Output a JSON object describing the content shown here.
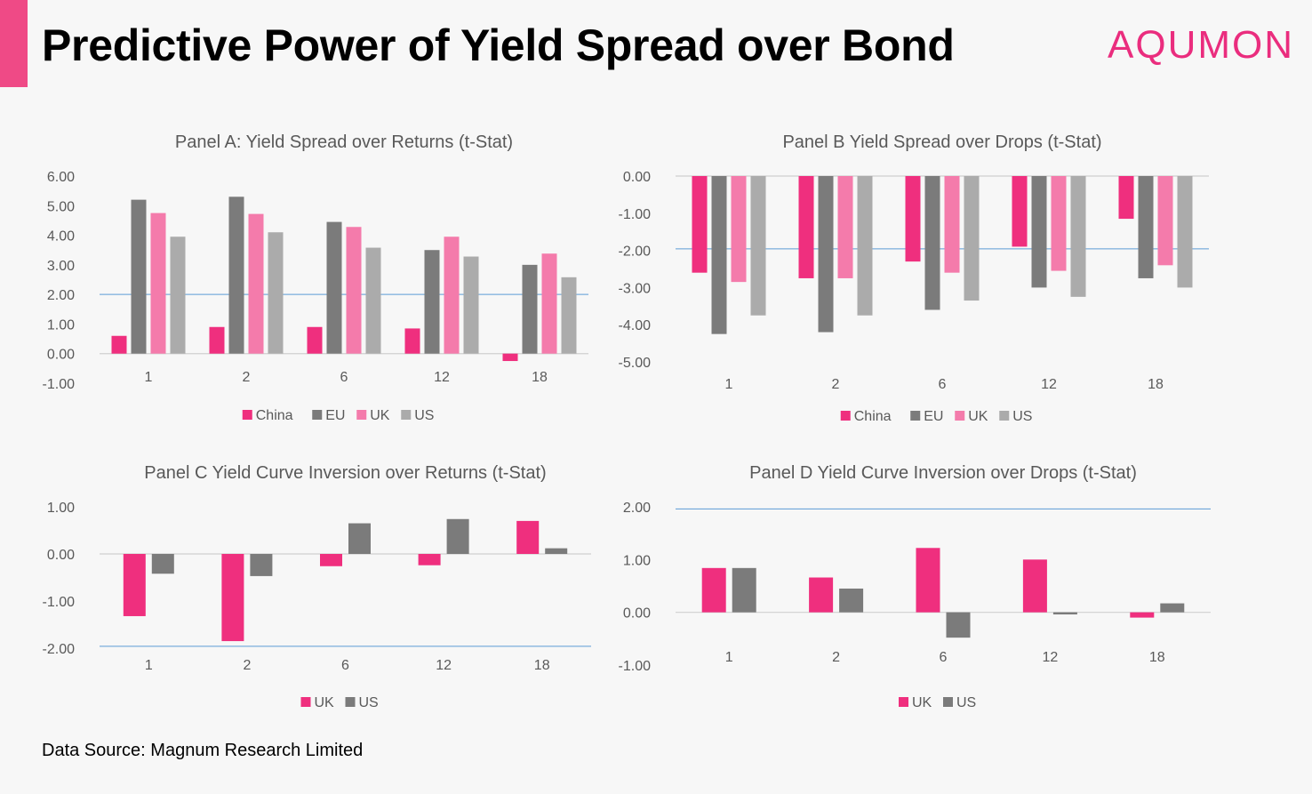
{
  "header": {
    "title": "Predictive Power of Yield Spread over Bond",
    "logo_text": "AQUMON"
  },
  "footer": {
    "source": "Data Source: Magnum Research Limited"
  },
  "colors": {
    "accent": "#ef4a86",
    "logo": "#ea2d7e",
    "China": "#ef2f7e",
    "EU": "#7b7b7b",
    "UK_A": "#f47bab",
    "US_A": "#ababab",
    "UK_C": "#ef2f7e",
    "US_C": "#7b7b7b",
    "threshold_line": "#5b9bd5"
  },
  "chart_data": [
    {
      "id": "panel-a",
      "type": "bar",
      "title": "Panel A: Yield Spread over Returns (t-Stat)",
      "categories": [
        "1",
        "2",
        "6",
        "12",
        "18"
      ],
      "yticks": [
        "6.00",
        "5.00",
        "4.00",
        "3.00",
        "2.00",
        "1.00",
        "0.00",
        "-1.00"
      ],
      "ylim": [
        -1,
        6
      ],
      "reference_line": 2,
      "legend_position": "bottom",
      "series": [
        {
          "name": "China",
          "color": "#ef2f7e",
          "values": [
            0.6,
            0.9,
            0.9,
            0.85,
            -0.25
          ]
        },
        {
          "name": "EU",
          "color": "#7b7b7b",
          "values": [
            5.2,
            5.3,
            4.45,
            3.5,
            3.0
          ]
        },
        {
          "name": "UK",
          "color": "#f47bab",
          "values": [
            4.75,
            4.72,
            4.28,
            3.95,
            3.38
          ]
        },
        {
          "name": "US",
          "color": "#ababab",
          "values": [
            3.95,
            4.1,
            3.58,
            3.28,
            2.58
          ]
        }
      ]
    },
    {
      "id": "panel-b",
      "type": "bar",
      "title": "Panel B Yield Spread over Drops (t-Stat)",
      "categories": [
        "1",
        "2",
        "6",
        "12",
        "18"
      ],
      "yticks": [
        "0.00",
        "-1.00",
        "-2.00",
        "-3.00",
        "-4.00",
        "-5.00"
      ],
      "ylim": [
        -5,
        0
      ],
      "reference_line": -1.96,
      "legend_position": "bottom",
      "series": [
        {
          "name": "China",
          "color": "#ef2f7e",
          "values": [
            -2.6,
            -2.75,
            -2.3,
            -1.9,
            -1.15
          ]
        },
        {
          "name": "EU",
          "color": "#7b7b7b",
          "values": [
            -4.25,
            -4.2,
            -3.6,
            -3.0,
            -2.75
          ]
        },
        {
          "name": "UK",
          "color": "#f47bab",
          "values": [
            -2.85,
            -2.75,
            -2.6,
            -2.55,
            -2.4
          ]
        },
        {
          "name": "US",
          "color": "#ababab",
          "values": [
            -3.75,
            -3.75,
            -3.35,
            -3.25,
            -3.0
          ]
        }
      ]
    },
    {
      "id": "panel-c",
      "type": "bar",
      "title": "Panel C Yield Curve Inversion over Returns (t-Stat)",
      "categories": [
        "1",
        "2",
        "6",
        "12",
        "18"
      ],
      "yticks": [
        "1.00",
        "0.00",
        "-1.00",
        "-2.00"
      ],
      "ylim": [
        -2,
        1
      ],
      "reference_line": -1.96,
      "legend_position": "bottom",
      "series": [
        {
          "name": "UK",
          "color": "#ef2f7e",
          "values": [
            -1.32,
            -1.85,
            -0.26,
            -0.24,
            0.7
          ]
        },
        {
          "name": "US",
          "color": "#7b7b7b",
          "values": [
            -0.42,
            -0.47,
            0.65,
            0.74,
            0.12
          ]
        }
      ]
    },
    {
      "id": "panel-d",
      "type": "bar",
      "title": "Panel D Yield Curve Inversion over Drops (t-Stat)",
      "categories": [
        "1",
        "2",
        "6",
        "12",
        "18"
      ],
      "yticks": [
        "2.00",
        "1.00",
        "0.00",
        "-1.00"
      ],
      "ylim": [
        -1,
        2
      ],
      "reference_line": 1.96,
      "legend_position": "bottom",
      "series": [
        {
          "name": "UK",
          "color": "#ef2f7e",
          "values": [
            0.84,
            0.66,
            1.22,
            1.0,
            -0.1
          ]
        },
        {
          "name": "US",
          "color": "#7b7b7b",
          "values": [
            0.84,
            0.45,
            -0.48,
            -0.04,
            0.17
          ]
        }
      ]
    }
  ]
}
